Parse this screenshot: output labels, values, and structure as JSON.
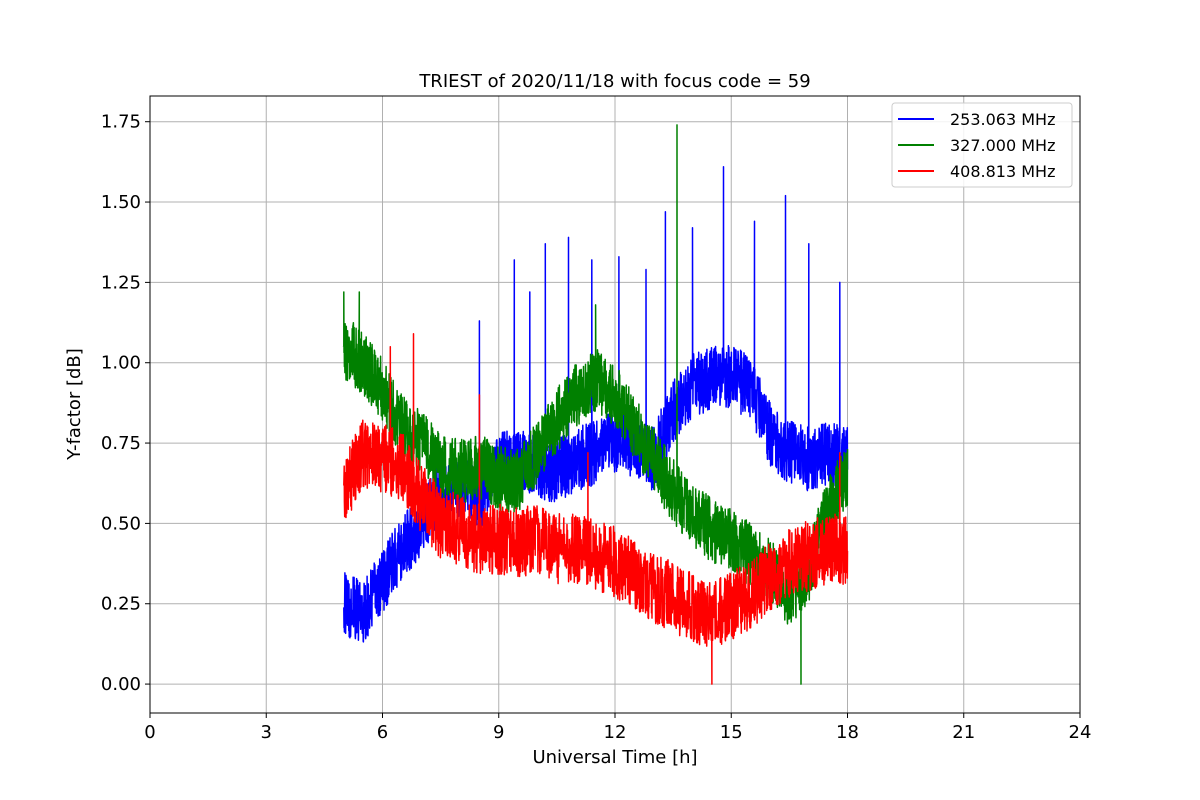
{
  "chart_data": {
    "type": "line",
    "title": "TRIEST of 2020/11/18 with focus code = 59",
    "xlabel": "Universal Time [h]",
    "ylabel": "Y-factor [dB]",
    "xlim": [
      0,
      24
    ],
    "ylim": [
      -0.09,
      1.83
    ],
    "xticks": [
      0,
      3,
      6,
      9,
      12,
      15,
      18,
      21,
      24
    ],
    "xtick_labels": [
      "0",
      "3",
      "6",
      "9",
      "12",
      "15",
      "18",
      "21",
      "24"
    ],
    "yticks": [
      0.0,
      0.25,
      0.5,
      0.75,
      1.0,
      1.25,
      1.5,
      1.75
    ],
    "ytick_labels": [
      "0.00",
      "0.25",
      "0.50",
      "0.75",
      "1.00",
      "1.25",
      "1.50",
      "1.75"
    ],
    "grid": true,
    "legend_position": "top-right",
    "series": [
      {
        "name": "253.063 MHz",
        "color": "#0000ff",
        "x": [
          5.0,
          5.5,
          6.0,
          6.5,
          7.0,
          7.5,
          8.0,
          8.5,
          9.0,
          9.5,
          10.0,
          10.5,
          11.0,
          11.5,
          12.0,
          12.5,
          13.0,
          13.5,
          14.0,
          14.5,
          15.0,
          15.5,
          16.0,
          16.5,
          17.0,
          17.5,
          18.0
        ],
        "y": [
          0.25,
          0.22,
          0.32,
          0.42,
          0.5,
          0.6,
          0.62,
          0.58,
          0.68,
          0.7,
          0.68,
          0.66,
          0.7,
          0.72,
          0.76,
          0.74,
          0.7,
          0.85,
          0.93,
          0.95,
          0.96,
          0.92,
          0.78,
          0.72,
          0.7,
          0.72,
          0.7
        ],
        "spikes": [
          {
            "x": 8.5,
            "y": 1.13
          },
          {
            "x": 9.4,
            "y": 1.32
          },
          {
            "x": 9.8,
            "y": 1.22
          },
          {
            "x": 10.2,
            "y": 1.37
          },
          {
            "x": 10.8,
            "y": 1.39
          },
          {
            "x": 11.4,
            "y": 1.32
          },
          {
            "x": 12.1,
            "y": 1.33
          },
          {
            "x": 12.8,
            "y": 1.29
          },
          {
            "x": 13.3,
            "y": 1.47
          },
          {
            "x": 14.0,
            "y": 1.42
          },
          {
            "x": 14.8,
            "y": 1.61
          },
          {
            "x": 15.6,
            "y": 1.44
          },
          {
            "x": 16.4,
            "y": 1.52
          },
          {
            "x": 17.0,
            "y": 1.37
          },
          {
            "x": 17.8,
            "y": 1.25
          }
        ]
      },
      {
        "name": "327.000 MHz",
        "color": "#008000",
        "x": [
          5.0,
          5.5,
          6.0,
          6.5,
          7.0,
          7.5,
          8.0,
          8.5,
          9.0,
          9.5,
          10.0,
          10.5,
          11.0,
          11.5,
          12.0,
          12.5,
          13.0,
          13.5,
          14.0,
          14.5,
          15.0,
          15.5,
          16.0,
          16.5,
          17.0,
          17.5,
          18.0
        ],
        "y": [
          1.05,
          1.0,
          0.92,
          0.8,
          0.75,
          0.68,
          0.66,
          0.68,
          0.64,
          0.63,
          0.72,
          0.82,
          0.9,
          0.95,
          0.9,
          0.8,
          0.7,
          0.6,
          0.52,
          0.48,
          0.45,
          0.4,
          0.35,
          0.28,
          0.35,
          0.55,
          0.65
        ],
        "spikes": [
          {
            "x": 5.0,
            "y": 1.22
          },
          {
            "x": 5.4,
            "y": 1.22
          },
          {
            "x": 11.5,
            "y": 1.18
          },
          {
            "x": 13.6,
            "y": 1.74
          },
          {
            "x": 16.8,
            "y": 0.0
          }
        ]
      },
      {
        "name": "408.813 MHz",
        "color": "#ff0000",
        "x": [
          5.0,
          5.5,
          6.0,
          6.5,
          7.0,
          7.5,
          8.0,
          8.5,
          9.0,
          9.5,
          10.0,
          10.5,
          11.0,
          11.5,
          12.0,
          12.5,
          13.0,
          13.5,
          14.0,
          14.5,
          15.0,
          15.5,
          16.0,
          16.5,
          17.0,
          17.5,
          18.0
        ],
        "y": [
          0.6,
          0.72,
          0.7,
          0.68,
          0.58,
          0.5,
          0.48,
          0.45,
          0.45,
          0.44,
          0.45,
          0.42,
          0.42,
          0.4,
          0.38,
          0.34,
          0.3,
          0.27,
          0.24,
          0.22,
          0.24,
          0.28,
          0.33,
          0.38,
          0.4,
          0.42,
          0.42
        ],
        "spikes": [
          {
            "x": 6.2,
            "y": 1.05
          },
          {
            "x": 6.8,
            "y": 1.09
          },
          {
            "x": 8.5,
            "y": 0.9
          },
          {
            "x": 11.3,
            "y": 0.72
          },
          {
            "x": 14.5,
            "y": 0.0
          },
          {
            "x": 17.8,
            "y": 0.72
          }
        ]
      }
    ]
  }
}
